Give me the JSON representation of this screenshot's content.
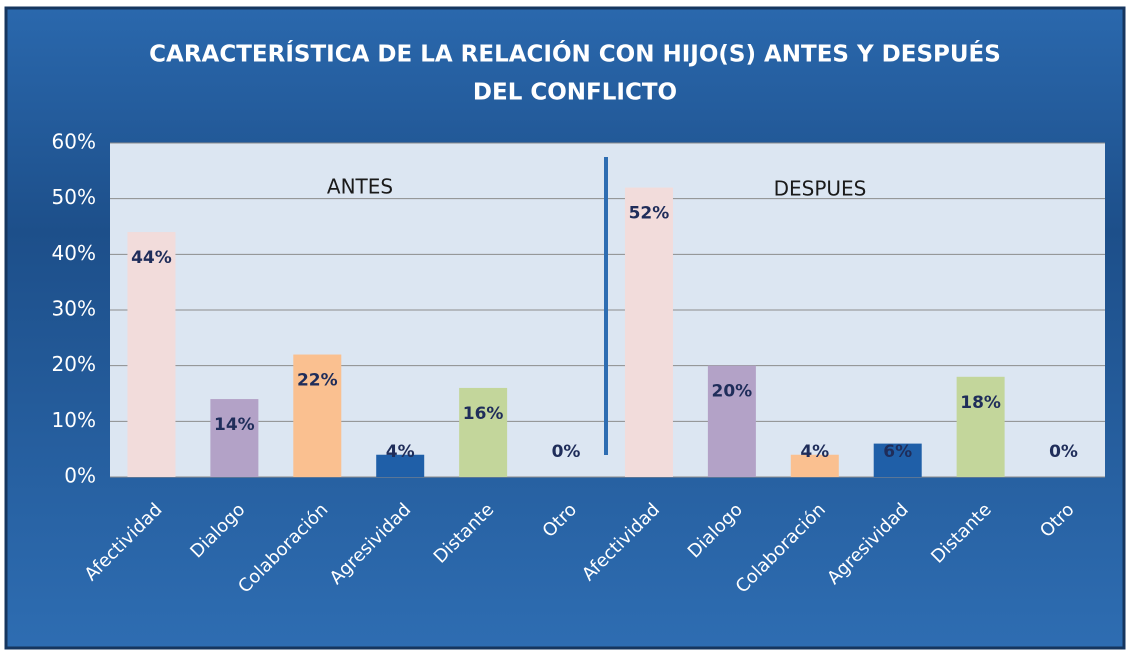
{
  "chart_data": {
    "type": "bar",
    "title": [
      "CARACTERÍSTICA DE LA RELACIÓN CON HIJO(S) ANTES Y DESPUÉS",
      "DEL CONFLICTO"
    ],
    "annotations": [
      "ANTES",
      "DESPUES"
    ],
    "categories": [
      "Afectividad",
      "Dialogo",
      "Colaboración",
      "Agresividad",
      "Distante",
      "Otro",
      "Afectividad",
      "Dialogo",
      "Colaboración",
      "Agresividad",
      "Distante",
      "Otro"
    ],
    "values": [
      44,
      14,
      22,
      4,
      16,
      0,
      52,
      20,
      4,
      6,
      18,
      0
    ],
    "value_labels": [
      "44%",
      "14%",
      "22%",
      "4%",
      "16%",
      "0%",
      "52%",
      "20%",
      "4%",
      "6%",
      "18%",
      "0%"
    ],
    "colors": [
      "#f2dcdb",
      "#b3a2c7",
      "#fac090",
      "#1f5fa8",
      "#c3d69b",
      "#dce6f2",
      "#f2dcdb",
      "#b3a2c7",
      "#fac090",
      "#1f5fa8",
      "#c3d69b",
      "#dce6f2"
    ],
    "ylim": [
      0,
      60
    ],
    "yticks": [
      {
        "value": 0,
        "label": "0%"
      },
      {
        "value": 10,
        "label": "10%"
      },
      {
        "value": 20,
        "label": "20%"
      },
      {
        "value": 30,
        "label": "30%"
      },
      {
        "value": 40,
        "label": "40%"
      },
      {
        "value": 50,
        "label": "50%"
      },
      {
        "value": 60,
        "label": "60%"
      }
    ],
    "grid": true
  }
}
